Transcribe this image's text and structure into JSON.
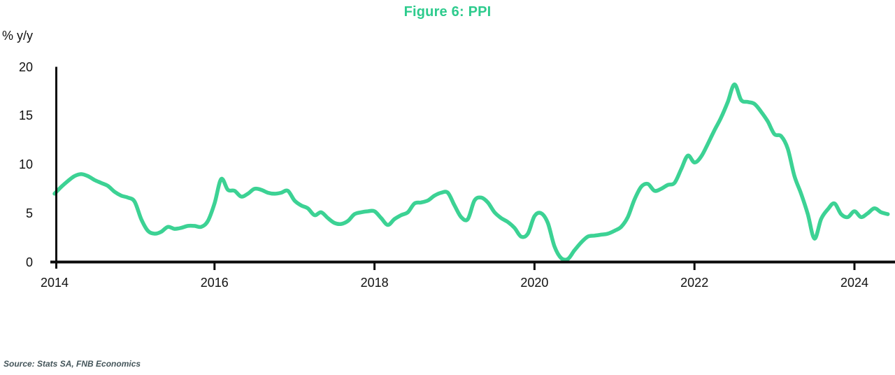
{
  "title": "Figure 6: PPI",
  "y_axis_unit": "% y/y",
  "source_note": "Source: Stats SA, FNB Economics",
  "colors": {
    "line": "#3cd294",
    "title": "#2dcb8d",
    "axis": "#0b0b0b",
    "tick_text": "#111111",
    "source_text": "#44555a"
  },
  "chart_data": {
    "type": "line",
    "title": "Figure 6: PPI",
    "xlabel": "",
    "ylabel": "% y/y",
    "ylim": [
      0,
      20
    ],
    "yticks": [
      0,
      5,
      10,
      15,
      20
    ],
    "xticks": [
      2014,
      2016,
      2018,
      2020,
      2022,
      2024
    ],
    "grid": false,
    "legend_position": "none",
    "frequency": "monthly",
    "x_start_year": 2014,
    "x_start_month": 1,
    "series": [
      {
        "name": "PPI % y/y",
        "values": [
          7.0,
          7.7,
          8.3,
          8.8,
          9.0,
          8.8,
          8.4,
          8.1,
          7.8,
          7.2,
          6.8,
          6.6,
          6.2,
          4.4,
          3.2,
          2.9,
          3.1,
          3.6,
          3.4,
          3.5,
          3.7,
          3.7,
          3.6,
          4.2,
          6.0,
          8.5,
          7.4,
          7.3,
          6.7,
          7.0,
          7.5,
          7.4,
          7.1,
          7.0,
          7.1,
          7.3,
          6.3,
          5.8,
          5.5,
          4.8,
          5.1,
          4.5,
          4.0,
          3.9,
          4.2,
          4.9,
          5.1,
          5.2,
          5.2,
          4.5,
          3.8,
          4.4,
          4.8,
          5.1,
          6.0,
          6.1,
          6.3,
          6.8,
          7.1,
          7.1,
          5.8,
          4.6,
          4.4,
          6.3,
          6.6,
          6.1,
          5.1,
          4.5,
          4.1,
          3.5,
          2.6,
          2.9,
          4.7,
          5.0,
          4.0,
          1.6,
          0.4,
          0.3,
          1.2,
          2.0,
          2.6,
          2.7,
          2.8,
          2.9,
          3.2,
          3.6,
          4.6,
          6.4,
          7.7,
          8.0,
          7.3,
          7.5,
          7.9,
          8.1,
          9.5,
          10.9,
          10.2,
          10.8,
          12.1,
          13.5,
          14.8,
          16.4,
          18.2,
          16.6,
          16.4,
          16.2,
          15.4,
          14.4,
          13.1,
          12.9,
          11.6,
          8.8,
          7.0,
          4.9,
          2.4,
          4.4,
          5.4,
          6.0,
          4.9,
          4.6,
          5.2,
          4.6,
          5.0,
          5.5,
          5.1,
          4.9
        ]
      }
    ]
  }
}
